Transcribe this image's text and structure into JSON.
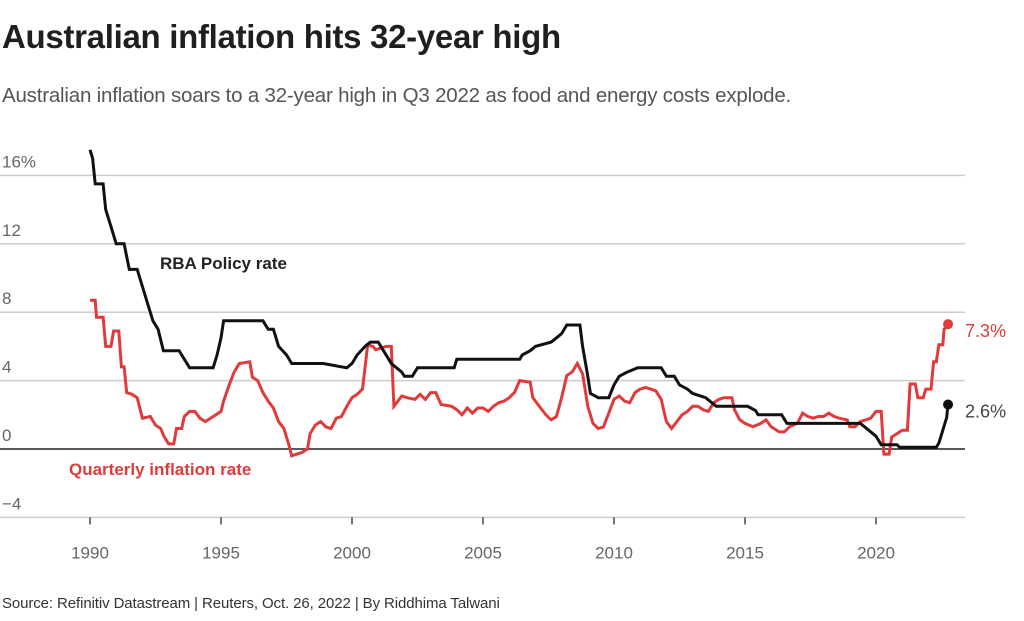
{
  "header": {
    "title": "Australian inflation hits 32-year high",
    "subtitle": "Australian inflation soars to a 32-year high in Q3 2022 as food and energy costs explode."
  },
  "footer": {
    "source": "Source: Refinitiv Datastream | Reuters, Oct. 26, 2022 | By Riddhima Talwani"
  },
  "colors": {
    "policy_rate": "#111111",
    "inflation": "#e03a3a",
    "grid": "#cccccc",
    "baseline": "#222222"
  },
  "chart_data": {
    "type": "line",
    "title": "Australian inflation hits 32-year high",
    "xlabel": "",
    "ylabel": "",
    "xlim": [
      1990,
      2022.75
    ],
    "ylim": [
      -4,
      17.5
    ],
    "grid": true,
    "x_ticks": [
      1990,
      1995,
      2000,
      2005,
      2010,
      2015,
      2020
    ],
    "x_tick_labels": [
      "1990",
      "1995",
      "2000",
      "2005",
      "2010",
      "2015",
      "2020"
    ],
    "y_ticks": [
      -4,
      0,
      4,
      8,
      12,
      16
    ],
    "y_tick_labels": [
      "−4",
      "0",
      "4",
      "8",
      "12",
      "16%"
    ],
    "series": [
      {
        "name": "RBA Policy rate",
        "color": "#111111",
        "end_label": "2.6%",
        "points": [
          [
            1990.0,
            17.5
          ],
          [
            1990.1,
            17.0
          ],
          [
            1990.2,
            15.5
          ],
          [
            1990.5,
            15.5
          ],
          [
            1990.6,
            14.0
          ],
          [
            1990.8,
            13.0
          ],
          [
            1991.0,
            12.0
          ],
          [
            1991.3,
            12.0
          ],
          [
            1991.5,
            10.5
          ],
          [
            1991.8,
            10.5
          ],
          [
            1992.0,
            9.5
          ],
          [
            1992.2,
            8.5
          ],
          [
            1992.4,
            7.5
          ],
          [
            1992.6,
            7.0
          ],
          [
            1992.8,
            5.75
          ],
          [
            1993.4,
            5.75
          ],
          [
            1993.6,
            5.25
          ],
          [
            1993.8,
            4.75
          ],
          [
            1994.7,
            4.75
          ],
          [
            1994.85,
            5.5
          ],
          [
            1995.0,
            6.5
          ],
          [
            1995.1,
            7.5
          ],
          [
            1996.6,
            7.5
          ],
          [
            1996.8,
            7.0
          ],
          [
            1997.0,
            7.0
          ],
          [
            1997.2,
            6.0
          ],
          [
            1997.5,
            5.5
          ],
          [
            1997.7,
            5.0
          ],
          [
            1998.9,
            5.0
          ],
          [
            1999.8,
            4.75
          ],
          [
            2000.0,
            5.0
          ],
          [
            2000.2,
            5.5
          ],
          [
            2000.5,
            6.0
          ],
          [
            2000.7,
            6.25
          ],
          [
            2001.0,
            6.25
          ],
          [
            2001.3,
            5.5
          ],
          [
            2001.5,
            5.0
          ],
          [
            2001.9,
            4.5
          ],
          [
            2002.0,
            4.25
          ],
          [
            2002.3,
            4.25
          ],
          [
            2002.5,
            4.75
          ],
          [
            2003.9,
            4.75
          ],
          [
            2004.0,
            5.25
          ],
          [
            2006.4,
            5.25
          ],
          [
            2006.5,
            5.5
          ],
          [
            2006.8,
            5.75
          ],
          [
            2007.0,
            6.0
          ],
          [
            2007.6,
            6.25
          ],
          [
            2007.8,
            6.5
          ],
          [
            2008.0,
            6.75
          ],
          [
            2008.2,
            7.25
          ],
          [
            2008.7,
            7.25
          ],
          [
            2008.8,
            6.0
          ],
          [
            2009.0,
            4.25
          ],
          [
            2009.1,
            3.25
          ],
          [
            2009.4,
            3.0
          ],
          [
            2009.8,
            3.0
          ],
          [
            2010.0,
            3.75
          ],
          [
            2010.2,
            4.25
          ],
          [
            2010.5,
            4.5
          ],
          [
            2010.9,
            4.75
          ],
          [
            2011.8,
            4.75
          ],
          [
            2012.0,
            4.25
          ],
          [
            2012.3,
            4.25
          ],
          [
            2012.5,
            3.75
          ],
          [
            2012.8,
            3.5
          ],
          [
            2013.0,
            3.25
          ],
          [
            2013.5,
            3.0
          ],
          [
            2013.7,
            2.75
          ],
          [
            2013.9,
            2.5
          ],
          [
            2015.1,
            2.5
          ],
          [
            2015.4,
            2.25
          ],
          [
            2015.5,
            2.0
          ],
          [
            2016.4,
            2.0
          ],
          [
            2016.6,
            1.5
          ],
          [
            2019.4,
            1.5
          ],
          [
            2019.6,
            1.25
          ],
          [
            2019.8,
            1.0
          ],
          [
            2020.0,
            0.75
          ],
          [
            2020.2,
            0.25
          ],
          [
            2020.8,
            0.25
          ],
          [
            2020.9,
            0.1
          ],
          [
            2022.3,
            0.1
          ],
          [
            2022.4,
            0.35
          ],
          [
            2022.5,
            0.85
          ],
          [
            2022.6,
            1.35
          ],
          [
            2022.7,
            1.85
          ],
          [
            2022.75,
            2.6
          ]
        ]
      },
      {
        "name": "Quarterly inflation rate",
        "color": "#e03a3a",
        "end_label": "7.3%",
        "points": [
          [
            1990.0,
            8.7
          ],
          [
            1990.2,
            8.7
          ],
          [
            1990.25,
            7.7
          ],
          [
            1990.5,
            7.7
          ],
          [
            1990.6,
            6.0
          ],
          [
            1990.8,
            6.0
          ],
          [
            1990.9,
            6.9
          ],
          [
            1991.1,
            6.9
          ],
          [
            1991.2,
            4.8
          ],
          [
            1991.3,
            4.8
          ],
          [
            1991.4,
            3.3
          ],
          [
            1991.6,
            3.2
          ],
          [
            1991.8,
            3.0
          ],
          [
            1992.0,
            1.8
          ],
          [
            1992.3,
            1.9
          ],
          [
            1992.5,
            1.4
          ],
          [
            1992.7,
            1.2
          ],
          [
            1992.8,
            0.8
          ],
          [
            1993.0,
            0.3
          ],
          [
            1993.2,
            0.3
          ],
          [
            1993.3,
            1.2
          ],
          [
            1993.5,
            1.2
          ],
          [
            1993.6,
            1.9
          ],
          [
            1993.8,
            2.2
          ],
          [
            1994.0,
            2.2
          ],
          [
            1994.2,
            1.8
          ],
          [
            1994.4,
            1.6
          ],
          [
            1994.6,
            1.8
          ],
          [
            1994.8,
            2.0
          ],
          [
            1995.0,
            2.2
          ],
          [
            1995.1,
            2.8
          ],
          [
            1995.3,
            3.7
          ],
          [
            1995.5,
            4.5
          ],
          [
            1995.7,
            5.0
          ],
          [
            1996.1,
            5.1
          ],
          [
            1996.2,
            4.2
          ],
          [
            1996.4,
            4.0
          ],
          [
            1996.6,
            3.3
          ],
          [
            1996.8,
            2.8
          ],
          [
            1997.0,
            2.4
          ],
          [
            1997.2,
            1.6
          ],
          [
            1997.4,
            1.2
          ],
          [
            1997.6,
            0.2
          ],
          [
            1997.7,
            -0.4
          ],
          [
            1997.9,
            -0.3
          ],
          [
            1998.1,
            -0.2
          ],
          [
            1998.3,
            0.0
          ],
          [
            1998.4,
            0.9
          ],
          [
            1998.6,
            1.4
          ],
          [
            1998.8,
            1.6
          ],
          [
            1999.0,
            1.3
          ],
          [
            1999.2,
            1.2
          ],
          [
            1999.4,
            1.8
          ],
          [
            1999.6,
            1.9
          ],
          [
            1999.8,
            2.5
          ],
          [
            2000.0,
            3.0
          ],
          [
            2000.2,
            3.2
          ],
          [
            2000.4,
            3.5
          ],
          [
            2000.6,
            6.1
          ],
          [
            2000.8,
            6.0
          ],
          [
            2000.9,
            5.8
          ],
          [
            2001.1,
            5.9
          ],
          [
            2001.3,
            6.0
          ],
          [
            2001.5,
            6.0
          ],
          [
            2001.6,
            2.5
          ],
          [
            2001.9,
            3.1
          ],
          [
            2002.1,
            3.0
          ],
          [
            2002.4,
            2.9
          ],
          [
            2002.6,
            3.2
          ],
          [
            2002.8,
            2.9
          ],
          [
            2003.0,
            3.3
          ],
          [
            2003.2,
            3.3
          ],
          [
            2003.4,
            2.6
          ],
          [
            2003.8,
            2.5
          ],
          [
            2004.0,
            2.3
          ],
          [
            2004.2,
            2.0
          ],
          [
            2004.4,
            2.4
          ],
          [
            2004.6,
            2.1
          ],
          [
            2004.8,
            2.4
          ],
          [
            2005.0,
            2.4
          ],
          [
            2005.2,
            2.2
          ],
          [
            2005.4,
            2.5
          ],
          [
            2005.6,
            2.7
          ],
          [
            2005.8,
            2.8
          ],
          [
            2006.0,
            3.0
          ],
          [
            2006.2,
            3.3
          ],
          [
            2006.4,
            4.0
          ],
          [
            2006.8,
            3.9
          ],
          [
            2006.9,
            3.0
          ],
          [
            2007.2,
            2.4
          ],
          [
            2007.4,
            2.0
          ],
          [
            2007.6,
            1.7
          ],
          [
            2007.8,
            1.9
          ],
          [
            2008.0,
            3.0
          ],
          [
            2008.2,
            4.3
          ],
          [
            2008.4,
            4.5
          ],
          [
            2008.6,
            5.0
          ],
          [
            2008.8,
            4.4
          ],
          [
            2009.0,
            2.5
          ],
          [
            2009.2,
            1.5
          ],
          [
            2009.4,
            1.2
          ],
          [
            2009.6,
            1.3
          ],
          [
            2009.8,
            2.1
          ],
          [
            2010.0,
            2.9
          ],
          [
            2010.2,
            3.1
          ],
          [
            2010.4,
            2.8
          ],
          [
            2010.6,
            2.7
          ],
          [
            2010.8,
            3.3
          ],
          [
            2011.0,
            3.5
          ],
          [
            2011.2,
            3.6
          ],
          [
            2011.4,
            3.5
          ],
          [
            2011.6,
            3.4
          ],
          [
            2011.8,
            2.9
          ],
          [
            2012.0,
            1.6
          ],
          [
            2012.2,
            1.2
          ],
          [
            2012.4,
            1.6
          ],
          [
            2012.6,
            2.0
          ],
          [
            2012.8,
            2.2
          ],
          [
            2013.0,
            2.5
          ],
          [
            2013.2,
            2.5
          ],
          [
            2013.4,
            2.3
          ],
          [
            2013.6,
            2.2
          ],
          [
            2013.8,
            2.7
          ],
          [
            2014.0,
            2.9
          ],
          [
            2014.2,
            3.0
          ],
          [
            2014.5,
            3.0
          ],
          [
            2014.6,
            2.3
          ],
          [
            2014.8,
            1.7
          ],
          [
            2015.0,
            1.5
          ],
          [
            2015.3,
            1.3
          ],
          [
            2015.6,
            1.5
          ],
          [
            2015.8,
            1.7
          ],
          [
            2016.0,
            1.3
          ],
          [
            2016.3,
            1.0
          ],
          [
            2016.5,
            1.0
          ],
          [
            2016.7,
            1.3
          ],
          [
            2017.0,
            1.5
          ],
          [
            2017.2,
            2.1
          ],
          [
            2017.4,
            1.9
          ],
          [
            2017.6,
            1.8
          ],
          [
            2017.8,
            1.9
          ],
          [
            2018.0,
            1.9
          ],
          [
            2018.2,
            2.1
          ],
          [
            2018.4,
            1.9
          ],
          [
            2018.6,
            1.8
          ],
          [
            2018.9,
            1.7
          ],
          [
            2019.0,
            1.3
          ],
          [
            2019.2,
            1.3
          ],
          [
            2019.4,
            1.6
          ],
          [
            2019.6,
            1.7
          ],
          [
            2019.8,
            1.8
          ],
          [
            2020.0,
            2.2
          ],
          [
            2020.2,
            2.2
          ],
          [
            2020.3,
            -0.3
          ],
          [
            2020.5,
            -0.3
          ],
          [
            2020.6,
            0.7
          ],
          [
            2020.8,
            0.9
          ],
          [
            2021.0,
            1.1
          ],
          [
            2021.2,
            1.1
          ],
          [
            2021.3,
            3.8
          ],
          [
            2021.5,
            3.8
          ],
          [
            2021.6,
            3.0
          ],
          [
            2021.8,
            3.0
          ],
          [
            2021.9,
            3.5
          ],
          [
            2022.1,
            3.5
          ],
          [
            2022.2,
            5.1
          ],
          [
            2022.3,
            5.1
          ],
          [
            2022.4,
            6.1
          ],
          [
            2022.55,
            6.1
          ],
          [
            2022.6,
            7.0
          ],
          [
            2022.75,
            7.3
          ]
        ]
      }
    ],
    "annotations": [
      {
        "text": "RBA Policy rate",
        "series": "RBA Policy rate"
      },
      {
        "text": "Quarterly inflation rate",
        "series": "Quarterly inflation rate"
      }
    ]
  }
}
